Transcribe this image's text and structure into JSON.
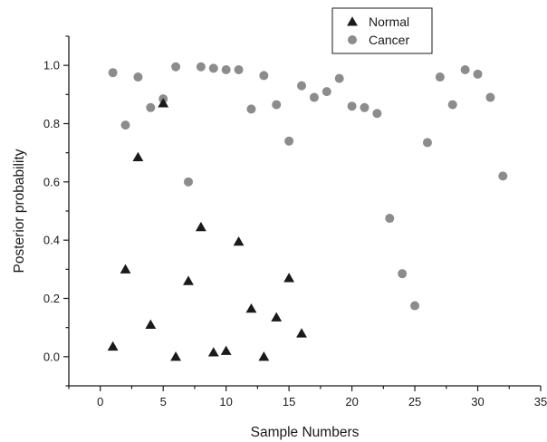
{
  "chart_data": {
    "type": "scatter",
    "xlabel": "Sample Numbers",
    "ylabel": "Posterior probability",
    "xlim": [
      -2.5,
      35
    ],
    "ylim": [
      -0.1,
      1.1
    ],
    "xticks": [
      0,
      5,
      10,
      15,
      20,
      25,
      30,
      35
    ],
    "xtick_labels": [
      "0",
      "5",
      "10",
      "15",
      "20",
      "25",
      "30",
      "35"
    ],
    "yticks": [
      0.0,
      0.2,
      0.4,
      0.6,
      0.8,
      1.0
    ],
    "ytick_labels": [
      "0.0",
      "0.2",
      "0.4",
      "0.6",
      "0.8",
      "1.0"
    ],
    "grid": false,
    "legend_position": "top-right",
    "series": [
      {
        "name": "Normal",
        "marker": "triangle",
        "color": "#1a1a1a",
        "x": [
          1,
          2,
          3,
          4,
          5,
          6,
          7,
          8,
          9,
          10,
          11,
          12,
          13,
          14,
          15,
          16
        ],
        "y": [
          0.035,
          0.3,
          0.685,
          0.11,
          0.87,
          0.0,
          0.26,
          0.445,
          0.015,
          0.02,
          0.395,
          0.165,
          0.0,
          0.135,
          0.27,
          0.08
        ]
      },
      {
        "name": "Cancer",
        "marker": "circle",
        "color": "#8c8c8c",
        "x": [
          1,
          2,
          3,
          4,
          5,
          6,
          7,
          8,
          9,
          10,
          11,
          12,
          13,
          14,
          15,
          16,
          17,
          18,
          19,
          20,
          21,
          22,
          23,
          24,
          25,
          26,
          27,
          28,
          29,
          30,
          31,
          32
        ],
        "y": [
          0.975,
          0.795,
          0.96,
          0.855,
          0.885,
          0.995,
          0.6,
          0.995,
          0.99,
          0.985,
          0.985,
          0.85,
          0.965,
          0.865,
          0.74,
          0.93,
          0.89,
          0.91,
          0.955,
          0.86,
          0.855,
          0.835,
          0.475,
          0.285,
          0.175,
          0.735,
          0.96,
          0.865,
          0.985,
          0.97,
          0.89,
          0.62
        ]
      }
    ]
  }
}
